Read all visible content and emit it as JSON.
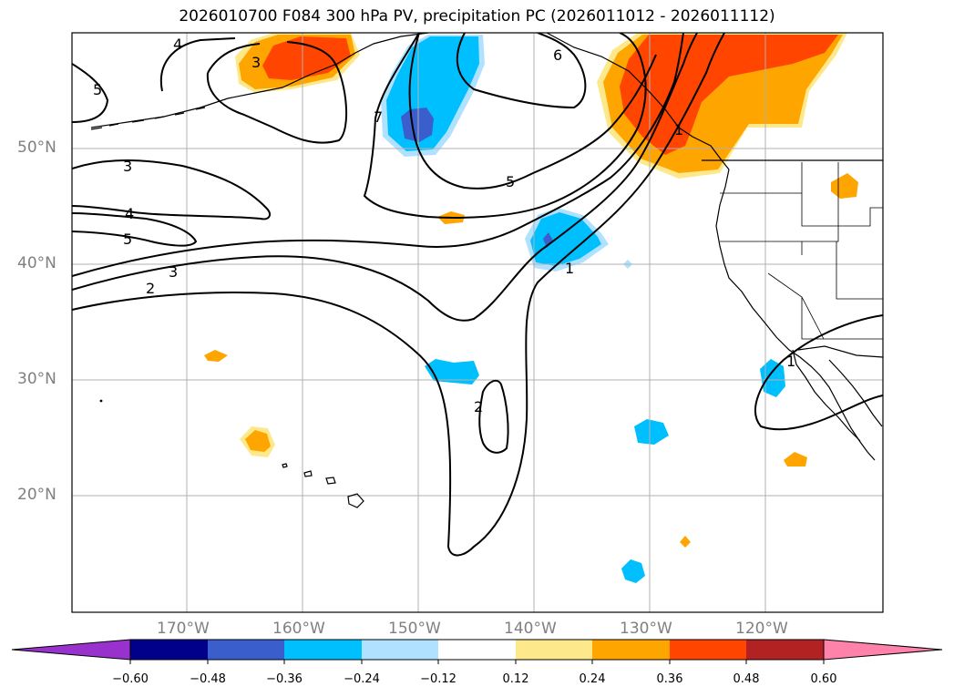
{
  "title": "2026010700 F084 300 hPa PV, precipitation PC (2026011012 - 2026011112)",
  "map": {
    "lat_labels": [
      "50°N",
      "40°N",
      "30°N",
      "20°N"
    ],
    "lon_labels": [
      "170°W",
      "160°W",
      "150°W",
      "140°W",
      "130°W",
      "120°W"
    ]
  },
  "contour_labels": [
    "4",
    "3",
    "5",
    "7",
    "6",
    "3",
    "4",
    "5",
    "3",
    "2",
    "5",
    "1",
    "2",
    "1",
    "1"
  ],
  "colorbar": {
    "tick_labels": [
      "−0.60",
      "−0.48",
      "−0.36",
      "−0.24",
      "−0.12",
      "0.12",
      "0.24",
      "0.36",
      "0.48",
      "0.60"
    ],
    "colors": [
      "#9932cc",
      "#00008b",
      "#3a5fcd",
      "#00bfff",
      "#b0e2ff",
      "#ffffff",
      "#fde98c",
      "#ffa500",
      "#ff4500",
      "#b22222",
      "#ff82ab"
    ]
  }
}
